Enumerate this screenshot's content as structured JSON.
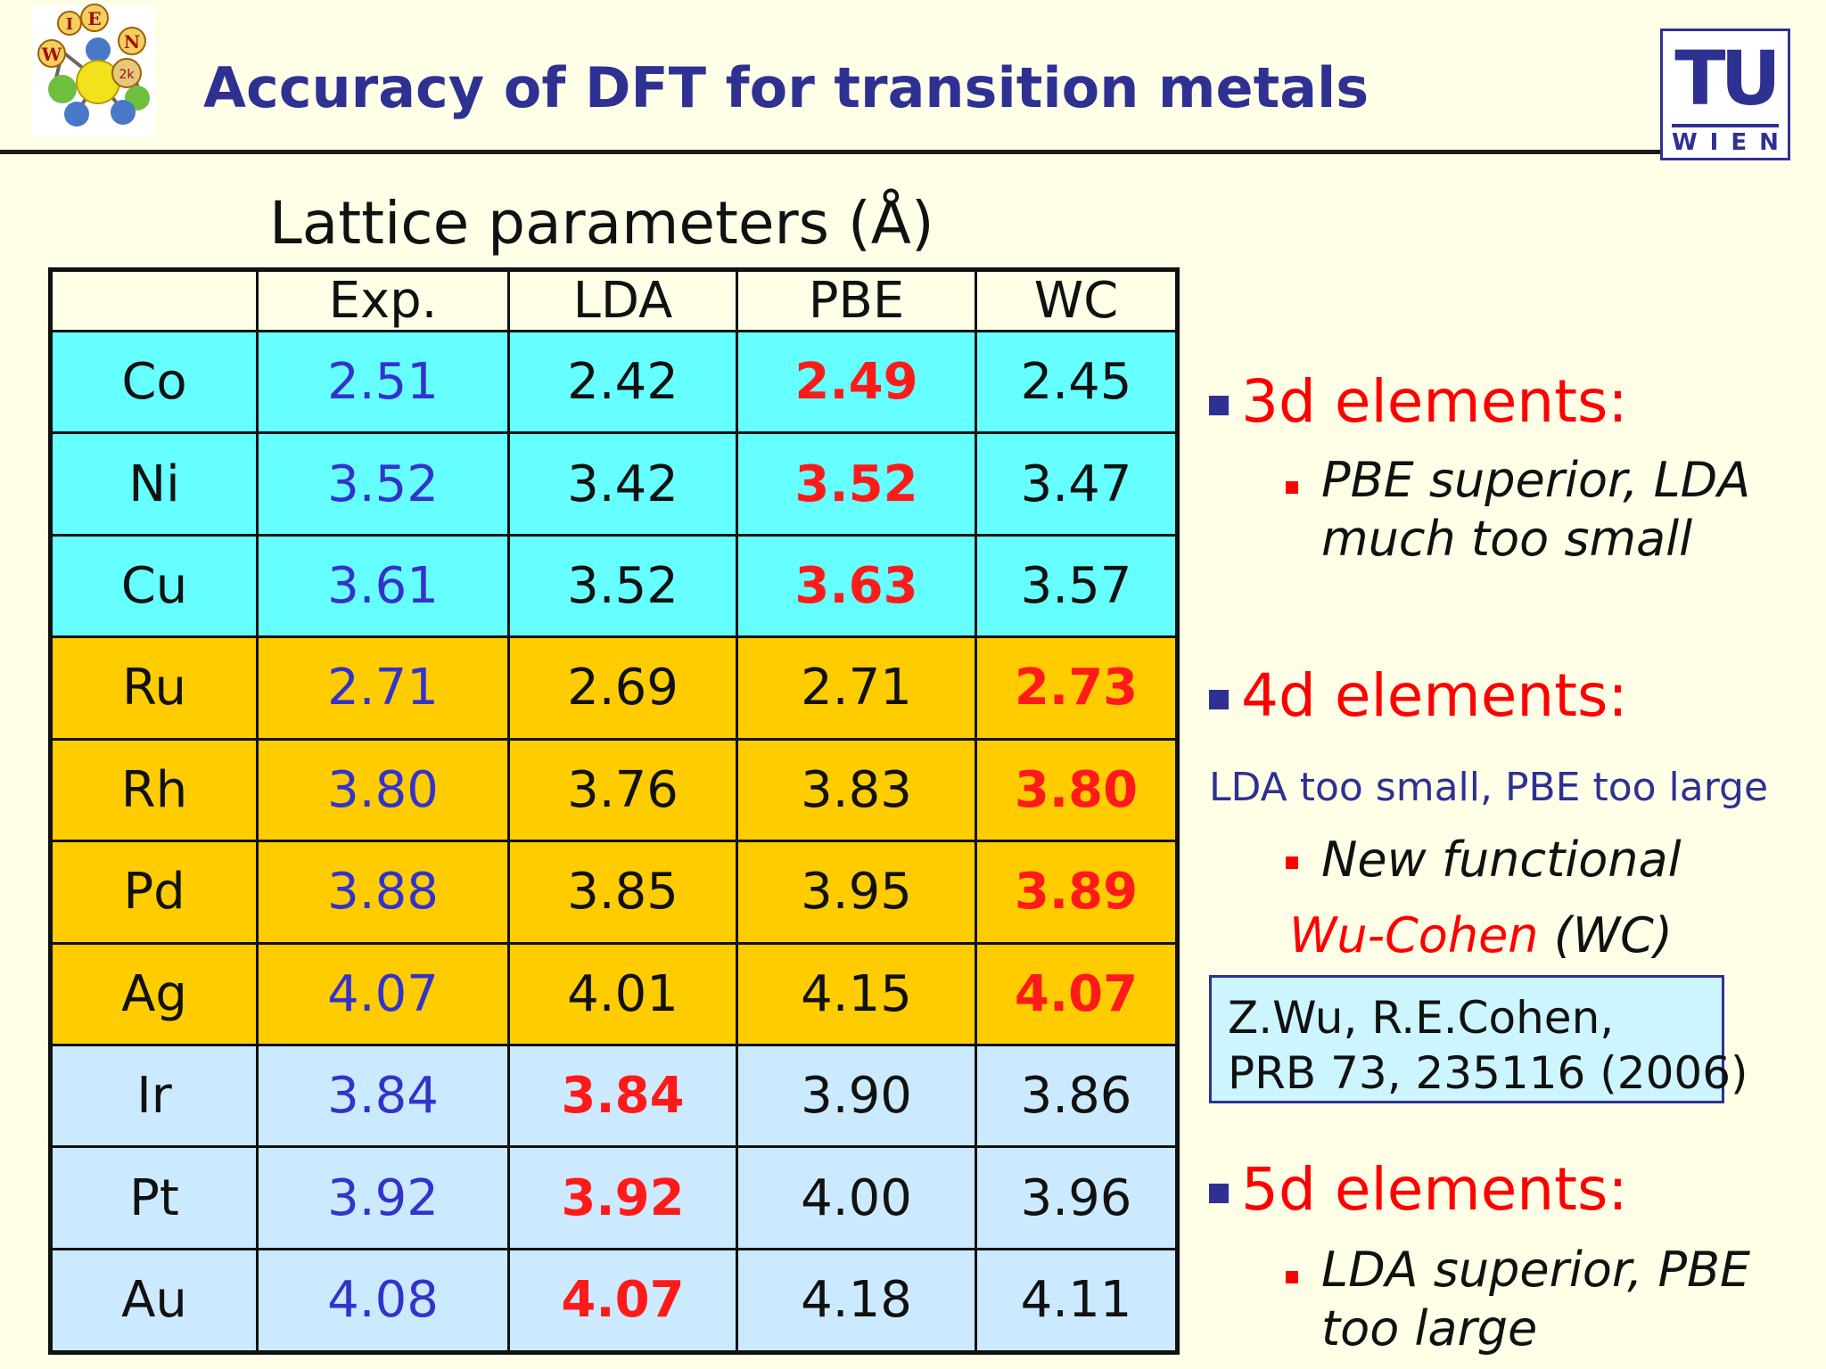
{
  "header": {
    "title": "Accuracy of DFT for transition metals",
    "logo_left_letters": [
      "W",
      "I",
      "E",
      "N",
      "2k"
    ],
    "logo_right_big": "TU",
    "logo_right_small": "WIEN"
  },
  "table": {
    "caption": "Lattice parameters (Å)",
    "columns": [
      "",
      "Exp.",
      "LDA",
      "PBE",
      "WC"
    ],
    "rows": [
      {
        "element": "Co",
        "group": "3d",
        "exp": "2.51",
        "lda": "2.42",
        "pbe": "2.49",
        "wc": "2.45",
        "best": "pbe"
      },
      {
        "element": "Ni",
        "group": "3d",
        "exp": "3.52",
        "lda": "3.42",
        "pbe": "3.52",
        "wc": "3.47",
        "best": "pbe"
      },
      {
        "element": "Cu",
        "group": "3d",
        "exp": "3.61",
        "lda": "3.52",
        "pbe": "3.63",
        "wc": "3.57",
        "best": "pbe"
      },
      {
        "element": "Ru",
        "group": "4d",
        "exp": "2.71",
        "lda": "2.69",
        "pbe": "2.71",
        "wc": "2.73",
        "best": "wc"
      },
      {
        "element": "Rh",
        "group": "4d",
        "exp": "3.80",
        "lda": "3.76",
        "pbe": "3.83",
        "wc": "3.80",
        "best": "wc"
      },
      {
        "element": "Pd",
        "group": "4d",
        "exp": "3.88",
        "lda": "3.85",
        "pbe": "3.95",
        "wc": "3.89",
        "best": "wc"
      },
      {
        "element": "Ag",
        "group": "4d",
        "exp": "4.07",
        "lda": "4.01",
        "pbe": "4.15",
        "wc": "4.07",
        "best": "wc"
      },
      {
        "element": "Ir",
        "group": "5d",
        "exp": "3.84",
        "lda": "3.84",
        "pbe": "3.90",
        "wc": "3.86",
        "best": "lda"
      },
      {
        "element": "Pt",
        "group": "5d",
        "exp": "3.92",
        "lda": "3.92",
        "pbe": "4.00",
        "wc": "3.96",
        "best": "lda"
      },
      {
        "element": "Au",
        "group": "5d",
        "exp": "4.08",
        "lda": "4.07",
        "pbe": "4.18",
        "wc": "4.11",
        "best": "lda"
      }
    ],
    "colors": {
      "3d": "#66ffff",
      "4d": "#ffcc00",
      "5d": "#cceaff",
      "exp": "#3333cc",
      "best": "#ff1a1a"
    }
  },
  "sidebar": {
    "h3d": "3d elements:",
    "s3d_line1": "PBE superior, LDA",
    "s3d_line2": "much too small",
    "h4d": "4d elements:",
    "note_4d": "LDA too small,  PBE too large",
    "s4d_line1": "New functional",
    "wc_name": "Wu-Cohen",
    "wc_abbr": " (WC)",
    "ref_line1": "Z.Wu, R.E.Cohen,",
    "ref_line2": "PRB 73, 235116 (2006)",
    "h5d": "5d elements:",
    "s5d_line1": "LDA superior, PBE",
    "s5d_line2": "too large"
  }
}
